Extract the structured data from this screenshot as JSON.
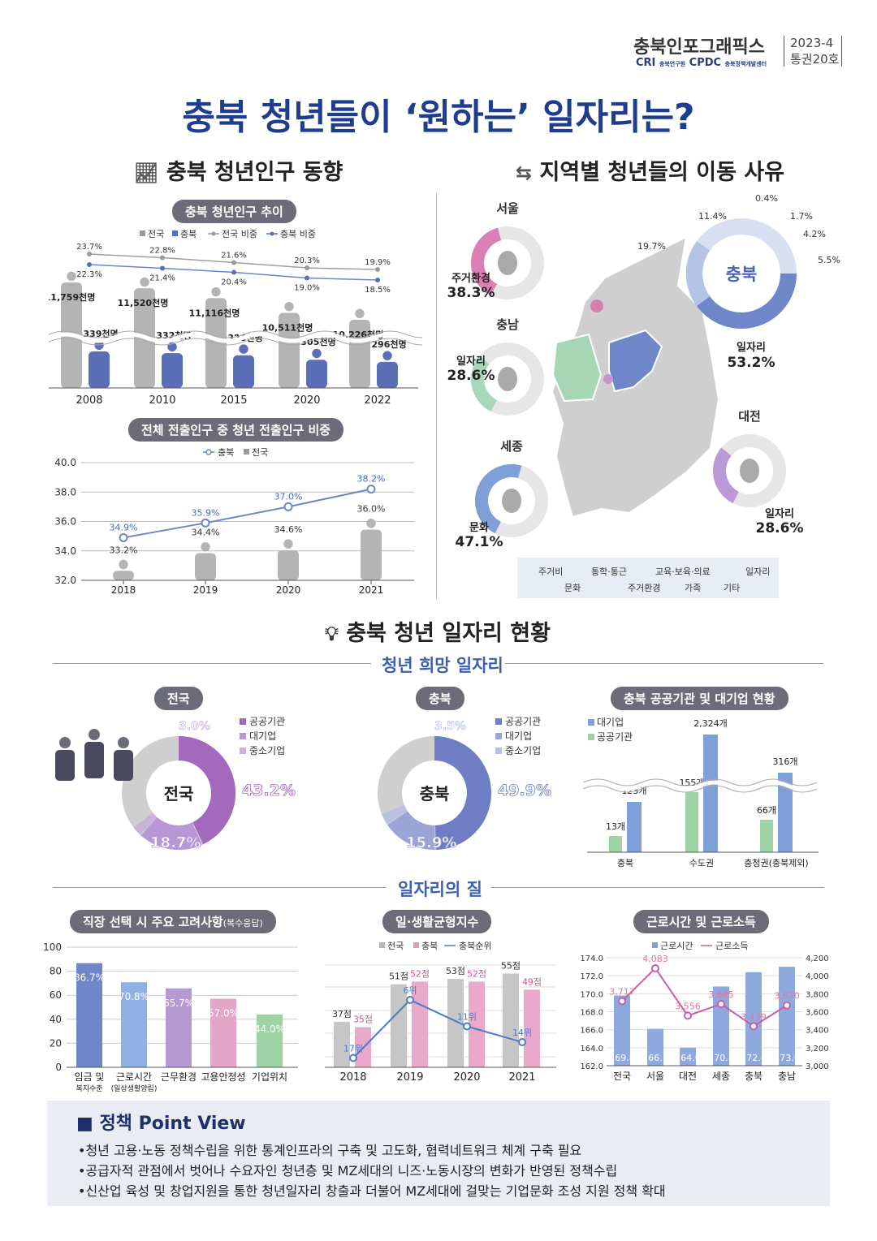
{
  "header": {
    "brand": "충북인포그래픽스",
    "cri": "CRI",
    "cri_sub": "충북연구원",
    "cpdc": "CPDC",
    "cpdc_sub": "충북정책개발센터",
    "issue_date": "2023-4",
    "issue_no": "통권20호"
  },
  "main_title": "충북 청년들이 ‘원하는’ 일자리는?",
  "sections": {
    "population": "충북 청년인구 동향",
    "migration": "지역별 청년들의 이동 사유",
    "jobs": "충북 청년 일자리 현황"
  },
  "subsections": {
    "hope_jobs": "청년 희망 일자리",
    "job_quality": "일자리의 질"
  },
  "pop_trend": {
    "title": "충북 청년인구 추이",
    "legend": [
      "전국",
      "충북",
      "전국 비중",
      "충북 비중"
    ],
    "chart_data": {
      "type": "bar",
      "categories": [
        "2008",
        "2010",
        "2015",
        "2020",
        "2022"
      ],
      "series": [
        {
          "name": "전국",
          "values": [
            11759,
            11520,
            11116,
            10511,
            10226
          ],
          "labels": [
            "11,759",
            "11,520",
            "11,116",
            "10,511",
            "10,226"
          ],
          "unit": "천명"
        },
        {
          "name": "충북",
          "values": [
            339,
            332,
            323,
            305,
            296
          ],
          "labels": [
            "339",
            "332",
            "323",
            "305",
            "296"
          ],
          "unit": "천명"
        },
        {
          "name": "전국 비중",
          "values": [
            23.7,
            22.8,
            21.6,
            20.3,
            19.9
          ],
          "labels": [
            "23.7",
            "22.8",
            "21.6",
            "20.3",
            "19.9"
          ],
          "unit": "%"
        },
        {
          "name": "충북 비중",
          "values": [
            22.3,
            21.4,
            20.4,
            19.0,
            18.5
          ],
          "labels": [
            "22.3",
            "21.4",
            "20.4",
            "19.0",
            "18.5"
          ],
          "unit": "%"
        }
      ]
    }
  },
  "outflow": {
    "title": "전체 전출인구 중 청년 전출인구 비중",
    "legend": [
      "충북",
      "전국"
    ],
    "chart_data": {
      "type": "line",
      "categories": [
        "2018",
        "2019",
        "2020",
        "2021"
      ],
      "yticks": [
        "40.0",
        "38.0",
        "36.0",
        "34.0",
        "32.0"
      ],
      "ylim": [
        32,
        40
      ],
      "series": [
        {
          "name": "충북",
          "values": [
            34.9,
            35.9,
            37.0,
            38.2
          ],
          "labels": [
            "34.9",
            "35.9",
            "37.0",
            "38.2"
          ]
        },
        {
          "name": "전국",
          "values": [
            33.2,
            34.4,
            34.6,
            36.0
          ],
          "labels": [
            "33.2",
            "34.4",
            "34.6",
            "36.0"
          ]
        }
      ],
      "unit": "%"
    }
  },
  "migration": {
    "regions": [
      {
        "name": "서울",
        "reason": "주거환경",
        "value": "38.3",
        "unit": "%"
      },
      {
        "name": "충남",
        "reason": "일자리",
        "value": "28.6",
        "unit": "%"
      },
      {
        "name": "세종",
        "reason": "문화",
        "value": "47.1",
        "unit": "%"
      },
      {
        "name": "대전",
        "reason": "일자리",
        "value": "28.6",
        "unit": "%"
      }
    ],
    "chungbuk": {
      "name": "충북",
      "reason": "일자리",
      "value": "53.2",
      "unit": "%",
      "others": [
        {
          "value": "0.4",
          "unit": "%"
        },
        {
          "value": "1.7",
          "unit": "%"
        },
        {
          "value": "4.2",
          "unit": "%"
        },
        {
          "value": "5.5",
          "unit": "%"
        },
        {
          "value": "19.7",
          "unit": "%"
        },
        {
          "value": "11.4",
          "unit": "%"
        }
      ]
    },
    "legend": [
      "주거비",
      "통학·통근",
      "교육·보육·의료",
      "일자리",
      "문화",
      "주거환경",
      "가족",
      "기타"
    ]
  },
  "hope": {
    "national": {
      "title": "전국",
      "center": "전국",
      "legend": [
        "공공기관",
        "대기업",
        "중소기업"
      ],
      "chart_data": {
        "type": "pie",
        "labels": [
          "공공기관",
          "대기업",
          "중소기업"
        ],
        "values": [
          43.2,
          18.7,
          3.0
        ],
        "display": [
          "43.2%",
          "18.7%",
          "3.0%"
        ]
      }
    },
    "chungbuk": {
      "title": "충북",
      "center": "충북",
      "legend": [
        "공공기관",
        "대기업",
        "중소기업"
      ],
      "chart_data": {
        "type": "pie",
        "labels": [
          "공공기관",
          "대기업",
          "중소기업"
        ],
        "values": [
          49.9,
          15.9,
          3.5
        ],
        "display": [
          "49.9%",
          "15.9%",
          "3.5%"
        ]
      }
    },
    "firms": {
      "title": "충북 공공기관 및 대기업 현황",
      "legend": [
        "대기업",
        "공공기관"
      ],
      "chart_data": {
        "type": "bar",
        "categories": [
          "충북",
          "수도권",
          "충청권(충북제외)"
        ],
        "series": [
          {
            "name": "공공기관",
            "values": [
              13,
              155,
              66
            ],
            "labels": [
              "13개",
              "155개",
              "66개"
            ]
          },
          {
            "name": "대기업",
            "values": [
              123,
              2324,
              316
            ],
            "labels": [
              "123개",
              "2,324개",
              "316개"
            ]
          }
        ]
      }
    }
  },
  "quality": {
    "factors": {
      "title": "직장 선택 시 주요 고려사항",
      "title_note": "(복수응답)",
      "chart_data": {
        "type": "bar",
        "categories": [
          "임금 및 복지수준",
          "근로시간",
          "근무환경",
          "고용안정성",
          "기업위치"
        ],
        "category_lines": [
          [
            "임금 및",
            "복지수준"
          ],
          [
            "근로시간",
            "(일상생활양립)"
          ],
          [
            "근무환경"
          ],
          [
            "고용안정성"
          ],
          [
            "기업위치"
          ]
        ],
        "values": [
          86.7,
          70.8,
          65.7,
          57.0,
          44.0
        ],
        "labels": [
          "86.7%",
          "70.8%",
          "65.7%",
          "57.0%",
          "44.0%"
        ],
        "yticks": [
          "100",
          "80",
          "60",
          "40",
          "20",
          "0"
        ],
        "ylim": [
          0,
          100
        ],
        "colors": [
          "#6f86c8",
          "#8fb1e3",
          "#b49ad0",
          "#e4a5c8",
          "#9fd2a4"
        ]
      }
    },
    "wlb": {
      "title": "일·생활균형지수",
      "legend": [
        "전국",
        "충북",
        "충북순위"
      ],
      "chart_data": {
        "type": "bar",
        "categories": [
          "2018",
          "2019",
          "2020",
          "2021"
        ],
        "series": [
          {
            "name": "전국",
            "values": [
              37,
              51,
              53,
              55
            ],
            "labels": [
              "37점",
              "51점",
              "53점",
              "55점"
            ]
          },
          {
            "name": "충북",
            "values": [
              35,
              52,
              52,
              49
            ],
            "labels": [
              "35점",
              "52점",
              "52점",
              "49점"
            ]
          },
          {
            "name": "충북순위",
            "values": [
              17,
              6,
              11,
              14
            ],
            "labels": [
              "17위",
              "6위",
              "11위",
              "14위"
            ]
          }
        ]
      }
    },
    "hours": {
      "title": "근로시간 및 근로소득",
      "legend": [
        "근로시간",
        "근로소득"
      ],
      "chart_data": {
        "type": "bar",
        "categories": [
          "전국",
          "서울",
          "대전",
          "세종",
          "충북",
          "충남"
        ],
        "left_ticks": [
          "174.0",
          "172.0",
          "170.0",
          "168.0",
          "166.0",
          "164.0",
          "162.0"
        ],
        "right_ticks": [
          "4,200",
          "4,000",
          "3,800",
          "3,600",
          "3,400",
          "3,200",
          "3,000"
        ],
        "series": [
          {
            "name": "근로시간",
            "values": [
              169.8,
              166.1,
              164.0,
              170.8,
              172.4,
              173.0
            ],
            "labels": [
              "169.8",
              "166.1",
              "164.0",
              "170.8",
              "172.4",
              "173.0"
            ]
          },
          {
            "name": "근로소득",
            "values": [
              3717,
              4083,
              3556,
              3685,
              3439,
              3670
            ],
            "labels": [
              "3,717",
              "4,083",
              "3,556",
              "3,685",
              "3,439",
              "3,670"
            ]
          }
        ]
      }
    }
  },
  "policy": {
    "title": "■ 정책 Point View",
    "lines": [
      "•청년 고용·노동 정책수립을 위한 통계인프라의 구축 및 고도화, 협력네트워크 체계 구축 필요",
      "•공급자적 관점에서 벗어나 수요자인 청년층 및 MZ세대의 니즈·노동시장의 변화가 반영된 정책수립",
      "•신산업 육성 및 창업지원을 통한 청년일자리 창출과 더불어 MZ세대에 걸맞는 기업문화 조성 지원 정책 확대"
    ]
  }
}
